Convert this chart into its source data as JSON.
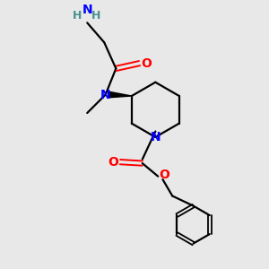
{
  "bg_color": "#e8e8e8",
  "atom_colors": {
    "N": "#0000ff",
    "O": "#ff0000",
    "H": "#4a9090"
  },
  "bond_color": "#000000",
  "line_width": 1.6,
  "figsize": [
    3.0,
    3.0
  ],
  "dpi": 100
}
